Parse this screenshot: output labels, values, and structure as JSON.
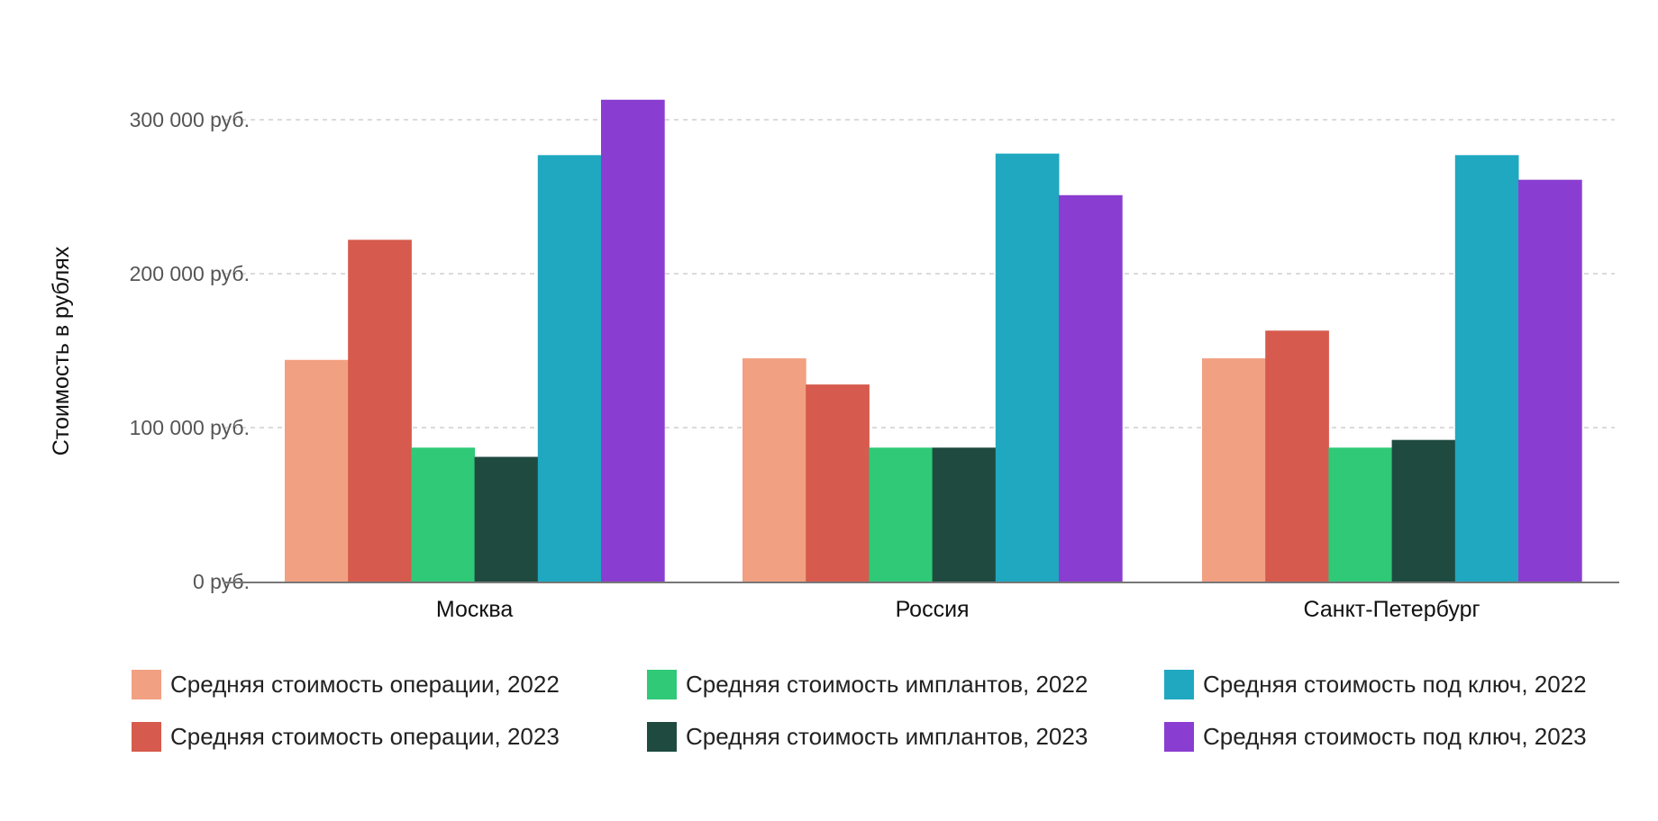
{
  "chart_data": {
    "type": "bar",
    "title": "",
    "xlabel": "",
    "ylabel": "Стоимость в рублях",
    "ylim": [
      0,
      330000
    ],
    "yticks": [
      {
        "value": 0,
        "label": "0 руб."
      },
      {
        "value": 100000,
        "label": "100 000 руб."
      },
      {
        "value": 200000,
        "label": "200 000 руб."
      },
      {
        "value": 300000,
        "label": "300 000 руб."
      }
    ],
    "grid": true,
    "legend_position": "bottom",
    "categories": [
      "Москва",
      "Россия",
      "Санкт-Петербург"
    ],
    "series": [
      {
        "name": "Средняя стоимость операции, 2022",
        "color": "#F2A082",
        "values": [
          144000,
          145000,
          145000
        ]
      },
      {
        "name": "Средняя стоимость операции, 2023",
        "color": "#D65A4D",
        "values": [
          222000,
          128000,
          163000
        ]
      },
      {
        "name": "Средняя стоимость имплантов, 2022",
        "color": "#2FC977",
        "values": [
          87000,
          87000,
          87000
        ]
      },
      {
        "name": "Средняя стоимость имплантов, 2023",
        "color": "#1F4A40",
        "values": [
          81000,
          87000,
          92000
        ]
      },
      {
        "name": "Средняя стоимость под ключ, 2022",
        "color": "#1FA8C0",
        "values": [
          277000,
          278000,
          277000
        ]
      },
      {
        "name": "Средняя стоимость под ключ, 2023",
        "color": "#8A3DD1",
        "values": [
          313000,
          251000,
          261000
        ]
      }
    ]
  }
}
